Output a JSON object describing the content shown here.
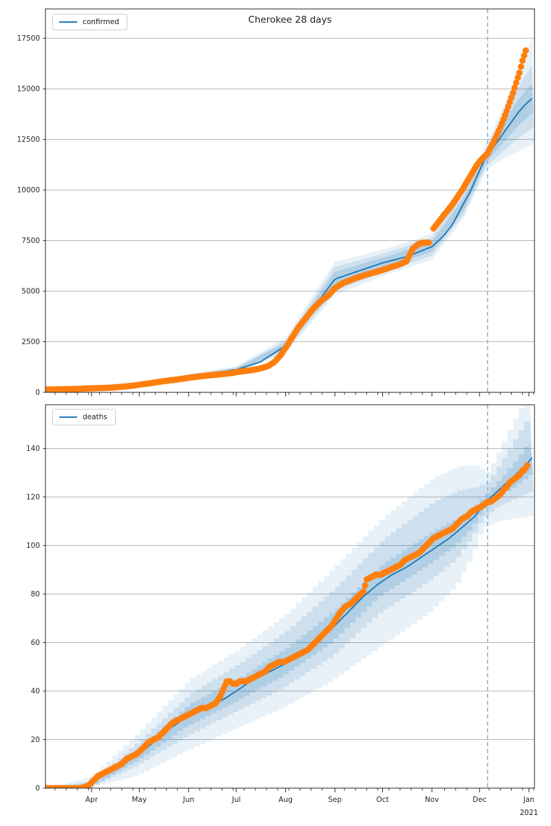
{
  "figure": {
    "title": "Cherokee 28 days",
    "year_label": "2021",
    "colors": {
      "line": "#1f77b4",
      "dots": "#ff7f0e",
      "band": "#1f77b4",
      "vline": "#8ab4d6",
      "grid": "#b3b3b3",
      "spine": "#222222",
      "text": "#262626"
    }
  },
  "chart_data": [
    {
      "type": "line",
      "name": "confirmed-forecast",
      "legend_label": "confirmed",
      "xlim": [
        2,
        309.5
      ],
      "ylim": [
        0,
        18950
      ],
      "yticks": [
        0,
        2500,
        5000,
        7500,
        10000,
        12500,
        15000,
        17500
      ],
      "x_month_ticks": [
        {
          "day": 31,
          "label": "Apr"
        },
        {
          "day": 61,
          "label": "May"
        },
        {
          "day": 92,
          "label": "Jun"
        },
        {
          "day": 122,
          "label": "Jul"
        },
        {
          "day": 153,
          "label": "Aug"
        },
        {
          "day": 184,
          "label": "Sep"
        },
        {
          "day": 214,
          "label": "Oct"
        },
        {
          "day": 245,
          "label": "Nov"
        },
        {
          "day": 275,
          "label": "Dec"
        },
        {
          "day": 306,
          "label": "Jan"
        }
      ],
      "minor_tick_start": 1,
      "minor_tick_interval": 7,
      "show_x_labels": false,
      "vline_day": 280,
      "line": {
        "days": [
          2,
          31,
          61,
          92,
          122,
          137,
          153,
          168,
          184,
          199,
          214,
          229,
          245,
          252,
          258,
          264,
          269,
          274,
          279,
          284,
          289,
          294,
          299,
          304,
          309
        ],
        "values": [
          150,
          210,
          420,
          800,
          1120,
          1500,
          2300,
          3900,
          5600,
          6000,
          6400,
          6700,
          7200,
          7700,
          8300,
          9200,
          9900,
          10800,
          11650,
          12150,
          12700,
          13250,
          13800,
          14250,
          14600
        ]
      },
      "dots_segments": [
        {
          "days": [
            2,
            10,
            17,
            24,
            31,
            38,
            45,
            52,
            59,
            61,
            68,
            75,
            82,
            89,
            92,
            99,
            106,
            113,
            120,
            122,
            126,
            130,
            134,
            138,
            142,
            146,
            150,
            153,
            157,
            161,
            165,
            170,
            175,
            180,
            184,
            189,
            194,
            199,
            204,
            209,
            214,
            219,
            224,
            229,
            233,
            236,
            239,
            241,
            243
          ],
          "values": [
            140,
            150,
            160,
            175,
            200,
            215,
            240,
            290,
            350,
            380,
            450,
            540,
            610,
            680,
            720,
            790,
            850,
            900,
            960,
            1000,
            1040,
            1080,
            1130,
            1200,
            1300,
            1500,
            1850,
            2200,
            2700,
            3200,
            3600,
            4100,
            4500,
            4800,
            5150,
            5400,
            5550,
            5700,
            5820,
            5930,
            6050,
            6180,
            6300,
            6480,
            7100,
            7300,
            7400,
            7400,
            7400
          ]
        },
        {
          "days": [
            246,
            249,
            252,
            255,
            258,
            261,
            264,
            267,
            270,
            273,
            276,
            278,
            280,
            282,
            284,
            286,
            288,
            290,
            292,
            294,
            296,
            298,
            300,
            301,
            302,
            303,
            304
          ],
          "values": [
            8100,
            8400,
            8700,
            9000,
            9300,
            9650,
            10000,
            10400,
            10800,
            11200,
            11500,
            11650,
            11800,
            12100,
            12400,
            12750,
            13100,
            13500,
            13900,
            14350,
            14800,
            15300,
            15800,
            16100,
            16400,
            16650,
            16900
          ]
        }
      ],
      "bands": {
        "stepped": false,
        "days": [
          2,
          61,
          122,
          153,
          184,
          214,
          245,
          265,
          279,
          289,
          299,
          309
        ],
        "outer_lo": [
          90,
          350,
          950,
          1950,
          4800,
          5750,
          6550,
          8600,
          10950,
          11500,
          11900,
          12300
        ],
        "outer_hi": [
          220,
          490,
          1290,
          2700,
          6450,
          7050,
          7850,
          10000,
          12250,
          13950,
          15700,
          17700
        ],
        "mid_lo": [
          100,
          370,
          1000,
          2050,
          5000,
          5950,
          6750,
          8800,
          11150,
          11850,
          12550,
          13100
        ],
        "mid_hi": [
          200,
          470,
          1240,
          2550,
          6200,
          6850,
          7650,
          9800,
          12050,
          13550,
          15050,
          16300
        ],
        "inner_lo": [
          120,
          390,
          1050,
          2150,
          5250,
          6150,
          6950,
          9000,
          11350,
          12250,
          13150,
          13850
        ],
        "inner_hi": [
          180,
          450,
          1190,
          2450,
          5950,
          6650,
          7450,
          9600,
          11850,
          13150,
          14450,
          15350
        ]
      }
    },
    {
      "type": "line",
      "name": "deaths-forecast",
      "legend_label": "deaths",
      "xlim": [
        2,
        309.5
      ],
      "ylim": [
        0,
        158
      ],
      "yticks": [
        0,
        20,
        40,
        60,
        80,
        100,
        120,
        140
      ],
      "x_month_ticks": [
        {
          "day": 31,
          "label": "Apr"
        },
        {
          "day": 61,
          "label": "May"
        },
        {
          "day": 92,
          "label": "Jun"
        },
        {
          "day": 122,
          "label": "Jul"
        },
        {
          "day": 153,
          "label": "Aug"
        },
        {
          "day": 184,
          "label": "Sep"
        },
        {
          "day": 214,
          "label": "Oct"
        },
        {
          "day": 245,
          "label": "Nov"
        },
        {
          "day": 275,
          "label": "Dec"
        },
        {
          "day": 306,
          "label": "Jan"
        }
      ],
      "minor_tick_start": 1,
      "minor_tick_interval": 7,
      "show_x_labels": true,
      "vline_day": 280,
      "line": {
        "days": [
          2,
          20,
          29,
          38,
          47,
          56,
          61,
          70,
          79,
          88,
          97,
          106,
          115,
          122,
          131,
          140,
          149,
          158,
          167,
          176,
          184,
          193,
          202,
          211,
          220,
          229,
          238,
          247,
          256,
          265,
          272,
          279,
          284,
          289,
          294,
          299,
          304,
          309
        ],
        "values": [
          0,
          0,
          1,
          5,
          8,
          12,
          14,
          19,
          24,
          28,
          31,
          34,
          37,
          40,
          44,
          47,
          50,
          53,
          57,
          62,
          67,
          73,
          79,
          84,
          88,
          91,
          95,
          99,
          103,
          108,
          112,
          118,
          121,
          124,
          127,
          130,
          133,
          137
        ]
      },
      "dots_segments": [
        {
          "days": [
            2,
            14,
            24,
            29,
            32,
            35,
            38,
            41,
            44,
            47,
            50,
            53,
            56,
            59,
            61,
            64,
            67,
            70,
            73,
            76,
            79,
            82,
            85,
            88,
            91,
            94,
            97,
            100,
            103,
            106,
            109,
            112,
            114,
            116,
            118,
            120,
            122,
            124,
            126,
            128,
            131,
            134,
            137,
            140,
            143,
            146,
            149,
            152,
            155,
            158,
            161,
            164,
            167,
            170,
            173,
            176,
            179,
            182,
            184,
            186,
            188,
            191,
            194,
            197,
            200,
            202,
            204,
            207,
            210,
            213,
            216,
            219,
            222,
            225,
            228,
            231,
            234,
            237,
            240,
            243,
            246,
            249,
            252,
            255,
            258,
            261,
            264,
            267,
            270,
            273,
            276,
            278,
            280,
            282,
            284,
            286,
            288,
            290,
            292,
            294,
            296,
            298,
            300,
            301,
            302,
            303,
            304,
            305
          ],
          "values": [
            0,
            0,
            0,
            1,
            3,
            5,
            6,
            7,
            8,
            9,
            10,
            12,
            13,
            14,
            15,
            17,
            19,
            20,
            21,
            23,
            25,
            27,
            28,
            29,
            30,
            31,
            32,
            33,
            33,
            34,
            35,
            38,
            41,
            44,
            44,
            43,
            43,
            44,
            44,
            44,
            45,
            46,
            47,
            48,
            50,
            51,
            52,
            52,
            53,
            54,
            55,
            56,
            57,
            59,
            61,
            63,
            65,
            67,
            69,
            71,
            73,
            75,
            76,
            78,
            80,
            81,
            86,
            87,
            88,
            88,
            89,
            90,
            91,
            92,
            94,
            95,
            96,
            97,
            99,
            101,
            103,
            104,
            105,
            106,
            107,
            109,
            111,
            112,
            114,
            115,
            116,
            117,
            118,
            118,
            119,
            120,
            121,
            123,
            124,
            126,
            127,
            128,
            129,
            130,
            131,
            131,
            132,
            133
          ]
        }
      ],
      "bands": {
        "stepped": true,
        "days": [
          2,
          31,
          61,
          92,
          122,
          153,
          184,
          214,
          245,
          262,
          272,
          279,
          289,
          299,
          309
        ],
        "outer_lo": [
          0,
          0,
          5,
          15,
          24,
          33,
          44,
          58,
          72,
          83,
          95,
          107,
          110,
          111,
          112
        ],
        "outer_hi": [
          0,
          5,
          24,
          45,
          57,
          72,
          92,
          112,
          128,
          133,
          133,
          130,
          143,
          156,
          168
        ],
        "mid_lo": [
          0,
          0,
          9,
          21,
          31,
          41,
          54,
          72,
          85,
          94,
          103,
          111,
          116,
          119,
          122
        ],
        "mid_hi": [
          0,
          3,
          20,
          39,
          51,
          65,
          83,
          103,
          118,
          123,
          124,
          126,
          136,
          147,
          157
        ],
        "inner_lo": [
          0,
          0,
          11,
          25,
          35,
          46,
          60,
          79,
          92,
          100,
          107,
          114,
          120,
          124,
          129
        ],
        "inner_hi": [
          0,
          2,
          17,
          35,
          45,
          58,
          74,
          93,
          106,
          112,
          117,
          122,
          129,
          137,
          146
        ]
      }
    }
  ]
}
